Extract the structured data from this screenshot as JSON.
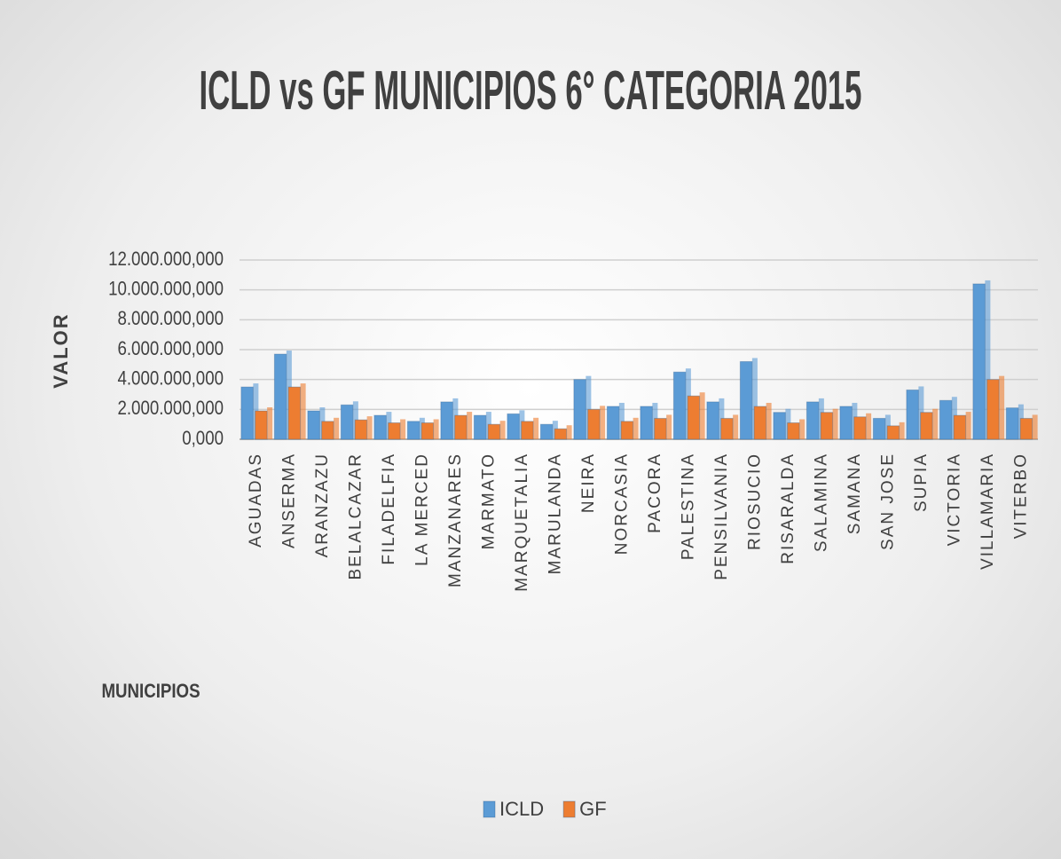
{
  "chart_data": {
    "type": "bar",
    "title": "ICLD vs GF MUNICIPIOS 6° CATEGORIA 2015",
    "y_label": "VALOR",
    "x_label": "MUNICIPIOS",
    "categories": [
      "AGUADAS",
      "ANSERMA",
      "ARANZAZU",
      "BELALCAZAR",
      "FILADELFIA",
      "LA MERCED",
      "MANZANARES",
      "MARMATO",
      "MARQUETALIA",
      "MARULANDA",
      "NEIRA",
      "NORCASIA",
      "PACORA",
      "PALESTINA",
      "PENSILVANIA",
      "RIOSUCIO",
      "RISARALDA",
      "SALAMINA",
      "SAMANA",
      "SAN JOSE",
      "SUPIA",
      "VICTORIA",
      "VILLAMARIA",
      "VITERBO"
    ],
    "series": [
      {
        "name": "ICLD",
        "color": "#5b9bd5",
        "values": [
          3500000000,
          5700000000,
          1900000000,
          2300000000,
          1600000000,
          1200000000,
          2500000000,
          1600000000,
          1700000000,
          1000000000,
          4000000000,
          2200000000,
          2200000000,
          4500000000,
          2500000000,
          5200000000,
          1800000000,
          2500000000,
          2200000000,
          1400000000,
          3300000000,
          2600000000,
          10400000000,
          2100000000
        ]
      },
      {
        "name": "GF",
        "color": "#ed7d31",
        "values": [
          1900000000,
          3500000000,
          1200000000,
          1300000000,
          1100000000,
          1100000000,
          1600000000,
          1000000000,
          1200000000,
          700000000,
          2000000000,
          1200000000,
          1400000000,
          2900000000,
          1400000000,
          2200000000,
          1100000000,
          1800000000,
          1500000000,
          900000000,
          1800000000,
          1600000000,
          4000000000,
          1400000000
        ]
      }
    ],
    "ylim": [
      0,
      12000000000
    ],
    "yticks": [
      {
        "value": 0,
        "label": "0,000"
      },
      {
        "value": 2000000000,
        "label": "2.000.000,000"
      },
      {
        "value": 4000000000,
        "label": "4.000.000,000"
      },
      {
        "value": 6000000000,
        "label": "6.000.000,000"
      },
      {
        "value": 8000000000,
        "label": "8.000.000,000"
      },
      {
        "value": 10000000000,
        "label": "10.000.000,000"
      },
      {
        "value": 12000000000,
        "label": "12.000.000,000"
      }
    ],
    "grid": true,
    "legend": "bottom"
  }
}
